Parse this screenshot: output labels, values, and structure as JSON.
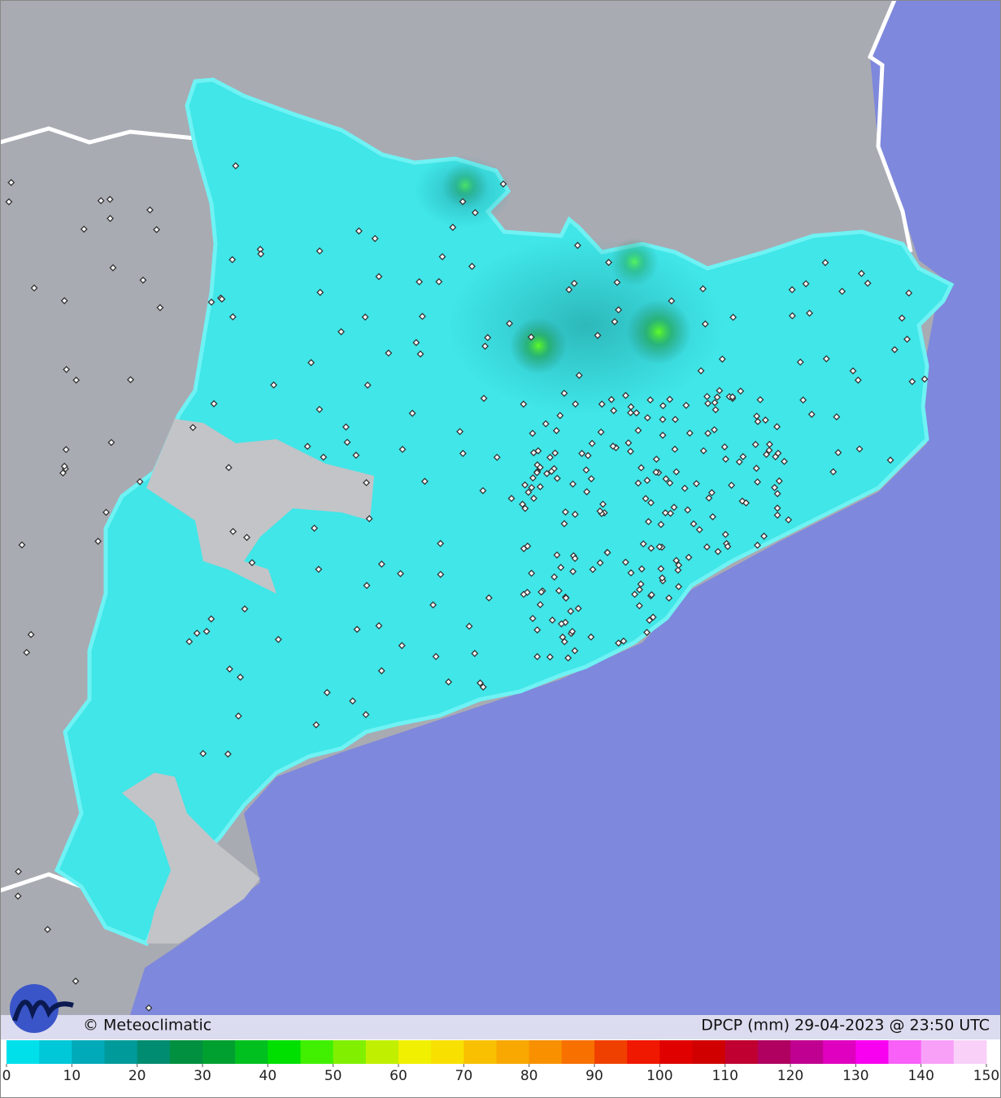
{
  "footer": {
    "credit": "© Meteoclimatic",
    "product": "DPCP (mm)  29-04-2023 @ 23:50 UTC"
  },
  "legend": {
    "ticks": [
      0,
      10,
      20,
      30,
      40,
      50,
      60,
      70,
      80,
      90,
      100,
      110,
      120,
      130,
      140,
      150
    ],
    "colors": [
      "#00e0ea",
      "#00c8d8",
      "#00aab8",
      "#009a9a",
      "#008c70",
      "#009040",
      "#00a030",
      "#00c020",
      "#00e000",
      "#40f000",
      "#80f000",
      "#c0f000",
      "#f0f000",
      "#f8e000",
      "#f8c000",
      "#f8a800",
      "#f89000",
      "#f87000",
      "#f04000",
      "#f01800",
      "#e00000",
      "#d00000",
      "#c00030",
      "#b00060",
      "#c00090",
      "#e000c0",
      "#f800f0",
      "#f860f8",
      "#f8a0f8",
      "#f8d0f8"
    ]
  }
}
